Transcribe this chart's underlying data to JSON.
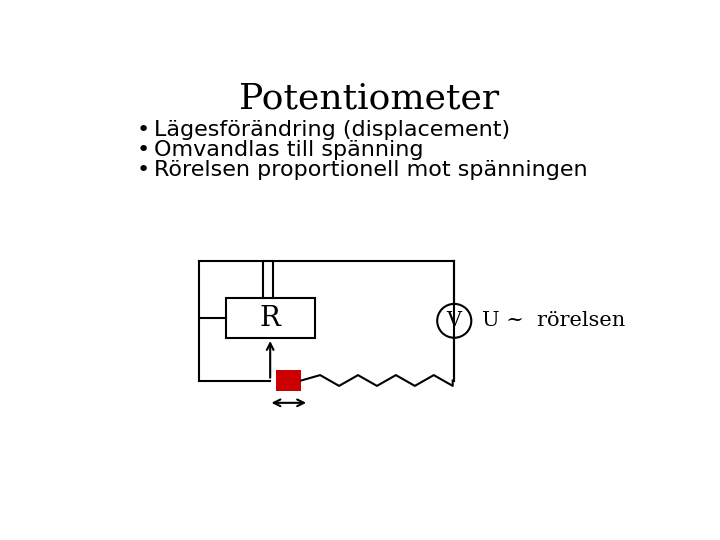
{
  "title": "Potentiometer",
  "bullet_points": [
    "Lägesförändring (displacement)",
    "Omvandlas till spänning",
    "Rörelsen proportionell mot spänningen"
  ],
  "background_color": "#ffffff",
  "title_fontsize": 26,
  "bullet_fontsize": 16,
  "circuit_label_R": "R",
  "circuit_label_V": "V",
  "circuit_annotation": "U ~  rörelsen",
  "line_color": "#000000",
  "resistor_fill": "#ffffff",
  "slider_fill": "#cc0000"
}
